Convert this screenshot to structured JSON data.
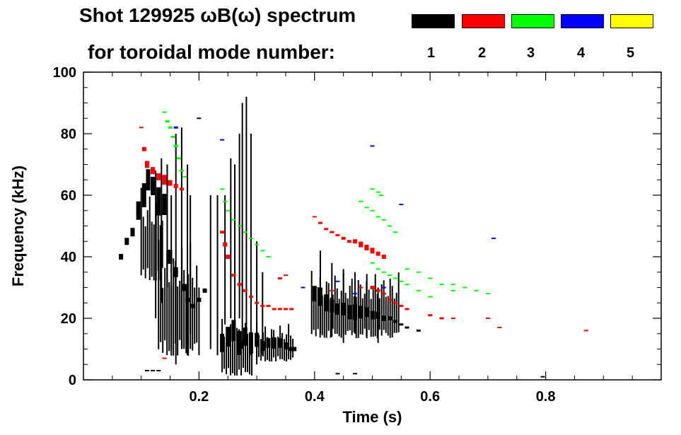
{
  "chart_data": {
    "type": "heatmap",
    "title_line1": "Shot 129925 ωB(ω) spectrum",
    "title_line2": "for toroidal mode number:",
    "xlabel": "Time (s)",
    "ylabel": "Frequency (kHz)",
    "xlim": [
      0.0,
      1.0
    ],
    "ylim": [
      0,
      100
    ],
    "xticks": [
      0.2,
      0.4,
      0.6,
      0.8
    ],
    "xtick_labels": [
      "0.2",
      "0.4",
      "0.6",
      "0.8"
    ],
    "yticks": [
      0,
      20,
      40,
      60,
      80,
      100
    ],
    "ytick_labels": [
      "0",
      "20",
      "40",
      "60",
      "80",
      "100"
    ],
    "legend": [
      {
        "n": "1",
        "color": "#000000"
      },
      {
        "n": "2",
        "color": "#ff0000"
      },
      {
        "n": "3",
        "color": "#00ff00"
      },
      {
        "n": "4",
        "color": "#0000ff"
      },
      {
        "n": "5",
        "color": "#ffff00"
      }
    ],
    "series": [
      {
        "name": "n=1",
        "color": "#000000",
        "strokes": [
          [
            0.065,
            40
          ],
          [
            0.075,
            45
          ],
          [
            0.085,
            48
          ],
          [
            0.095,
            55
          ],
          [
            0.105,
            60
          ],
          [
            0.112,
            65
          ],
          [
            0.12,
            63
          ],
          [
            0.13,
            58
          ],
          [
            0.14,
            57
          ],
          [
            0.15,
            40
          ],
          [
            0.16,
            35
          ],
          [
            0.175,
            30
          ],
          [
            0.18,
            26
          ],
          [
            0.19,
            24
          ],
          [
            0.2,
            26
          ],
          [
            0.21,
            29
          ],
          [
            0.24,
            12
          ],
          [
            0.25,
            14
          ],
          [
            0.26,
            16
          ],
          [
            0.27,
            12
          ],
          [
            0.28,
            14
          ],
          [
            0.29,
            12
          ],
          [
            0.3,
            13
          ],
          [
            0.31,
            11
          ],
          [
            0.32,
            12
          ],
          [
            0.33,
            12
          ],
          [
            0.34,
            12
          ],
          [
            0.35,
            11
          ],
          [
            0.36,
            10
          ],
          [
            0.365,
            10
          ],
          [
            0.4,
            28
          ],
          [
            0.41,
            27
          ],
          [
            0.42,
            25
          ],
          [
            0.43,
            24
          ],
          [
            0.44,
            23
          ],
          [
            0.45,
            23
          ],
          [
            0.46,
            22
          ],
          [
            0.47,
            22
          ],
          [
            0.48,
            22
          ],
          [
            0.49,
            22
          ],
          [
            0.5,
            21
          ],
          [
            0.51,
            21
          ],
          [
            0.52,
            20
          ],
          [
            0.53,
            20
          ],
          [
            0.54,
            19
          ],
          [
            0.55,
            18
          ],
          [
            0.56,
            17
          ],
          [
            0.58,
            16
          ],
          [
            0.2,
            85
          ],
          [
            0.11,
            3
          ],
          [
            0.12,
            3
          ],
          [
            0.13,
            3
          ],
          [
            0.44,
            2
          ],
          [
            0.47,
            2
          ],
          [
            0.795,
            1
          ]
        ],
        "widths": [
          8,
          10,
          12,
          26,
          34,
          30,
          26,
          40,
          30,
          20,
          14,
          10,
          6,
          6,
          6,
          6,
          26,
          28,
          30,
          34,
          26,
          30,
          20,
          14,
          14,
          16,
          14,
          10,
          6,
          6,
          22,
          26,
          24,
          18,
          16,
          18,
          20,
          22,
          18,
          14,
          12,
          10,
          8,
          6,
          4,
          3,
          3,
          3,
          2,
          2,
          2,
          2,
          2,
          2,
          2
        ],
        "fills": [
          [
            0.24,
            0.295,
            0,
            22
          ],
          [
            0.3,
            0.365,
            5,
            20
          ],
          [
            0.395,
            0.55,
            12,
            38
          ],
          [
            0.1,
            0.14,
            30,
            66
          ],
          [
            0.13,
            0.2,
            5,
            50
          ]
        ],
        "vlines": [
          [
            0.245,
            18,
            60
          ],
          [
            0.255,
            20,
            72
          ],
          [
            0.262,
            15,
            70
          ],
          [
            0.27,
            20,
            80
          ],
          [
            0.275,
            10,
            90
          ],
          [
            0.282,
            15,
            92
          ],
          [
            0.29,
            8,
            80
          ],
          [
            0.3,
            5,
            45
          ],
          [
            0.152,
            10,
            60
          ],
          [
            0.16,
            5,
            80
          ],
          [
            0.17,
            10,
            82
          ],
          [
            0.18,
            8,
            70
          ],
          [
            0.185,
            15,
            60
          ],
          [
            0.2,
            8,
            30
          ],
          [
            0.22,
            10,
            60
          ],
          [
            0.232,
            8,
            60
          ],
          [
            0.31,
            8,
            35
          ],
          [
            0.145,
            30,
            70
          ],
          [
            0.135,
            25,
            72
          ],
          [
            0.125,
            20,
            68
          ],
          [
            0.41,
            15,
            42
          ],
          [
            0.43,
            14,
            38
          ],
          [
            0.45,
            12,
            36
          ],
          [
            0.47,
            15,
            35
          ],
          [
            0.49,
            14,
            32
          ],
          [
            0.51,
            12,
            30
          ]
        ]
      },
      {
        "name": "n=2",
        "color": "#ff0000",
        "strokes": [
          [
            0.1,
            82
          ],
          [
            0.105,
            75
          ],
          [
            0.11,
            70
          ],
          [
            0.12,
            68
          ],
          [
            0.13,
            66
          ],
          [
            0.14,
            65
          ],
          [
            0.15,
            64
          ],
          [
            0.16,
            63
          ],
          [
            0.17,
            62
          ],
          [
            0.24,
            48
          ],
          [
            0.245,
            44
          ],
          [
            0.25,
            40
          ],
          [
            0.26,
            34
          ],
          [
            0.27,
            31
          ],
          [
            0.28,
            29
          ],
          [
            0.29,
            27
          ],
          [
            0.3,
            25
          ],
          [
            0.31,
            24
          ],
          [
            0.32,
            24
          ],
          [
            0.33,
            23
          ],
          [
            0.34,
            23
          ],
          [
            0.35,
            23
          ],
          [
            0.36,
            23
          ],
          [
            0.34,
            33
          ],
          [
            0.35,
            34
          ],
          [
            0.4,
            53
          ],
          [
            0.41,
            51
          ],
          [
            0.42,
            49
          ],
          [
            0.43,
            48
          ],
          [
            0.44,
            47
          ],
          [
            0.45,
            46
          ],
          [
            0.46,
            45
          ],
          [
            0.47,
            45
          ],
          [
            0.48,
            44
          ],
          [
            0.49,
            43
          ],
          [
            0.5,
            42
          ],
          [
            0.51,
            41
          ],
          [
            0.52,
            40
          ],
          [
            0.5,
            30
          ],
          [
            0.51,
            29
          ],
          [
            0.52,
            28
          ],
          [
            0.53,
            26
          ],
          [
            0.54,
            25
          ],
          [
            0.55,
            24
          ],
          [
            0.56,
            23
          ],
          [
            0.6,
            21
          ],
          [
            0.62,
            20
          ],
          [
            0.64,
            20
          ],
          [
            0.7,
            20
          ],
          [
            0.72,
            17
          ],
          [
            0.87,
            16
          ],
          [
            0.14,
            7
          ],
          [
            0.48,
            30
          ],
          [
            0.43,
            29
          ]
        ],
        "widths": [
          2,
          6,
          10,
          10,
          10,
          14,
          8,
          6,
          4,
          4,
          6,
          6,
          4,
          4,
          4,
          3,
          3,
          3,
          3,
          3,
          3,
          3,
          3,
          3,
          2,
          2,
          3,
          3,
          3,
          3,
          4,
          4,
          6,
          8,
          8,
          8,
          6,
          6,
          5,
          4,
          3,
          3,
          3,
          3,
          3,
          3,
          3,
          2,
          2,
          2,
          2,
          2,
          2,
          2,
          2
        ]
      },
      {
        "name": "n=3",
        "color": "#00ff00",
        "strokes": [
          [
            0.14,
            87
          ],
          [
            0.145,
            84
          ],
          [
            0.15,
            82
          ],
          [
            0.155,
            79
          ],
          [
            0.16,
            76
          ],
          [
            0.165,
            72
          ],
          [
            0.17,
            68
          ],
          [
            0.175,
            66
          ],
          [
            0.24,
            62
          ],
          [
            0.245,
            58
          ],
          [
            0.25,
            55
          ],
          [
            0.26,
            52
          ],
          [
            0.27,
            50
          ],
          [
            0.28,
            48
          ],
          [
            0.29,
            46
          ],
          [
            0.3,
            44
          ],
          [
            0.31,
            42
          ],
          [
            0.32,
            40
          ],
          [
            0.48,
            58
          ],
          [
            0.49,
            56
          ],
          [
            0.5,
            55
          ],
          [
            0.51,
            53
          ],
          [
            0.52,
            52
          ],
          [
            0.53,
            50
          ],
          [
            0.54,
            48
          ],
          [
            0.5,
            38
          ],
          [
            0.51,
            36
          ],
          [
            0.52,
            35
          ],
          [
            0.53,
            34
          ],
          [
            0.54,
            33
          ],
          [
            0.55,
            32
          ],
          [
            0.56,
            31
          ],
          [
            0.58,
            29
          ],
          [
            0.6,
            27
          ],
          [
            0.64,
            29
          ],
          [
            0.66,
            30
          ],
          [
            0.68,
            29
          ],
          [
            0.7,
            28
          ],
          [
            0.5,
            62
          ],
          [
            0.51,
            61
          ],
          [
            0.515,
            60
          ],
          [
            0.56,
            36
          ],
          [
            0.58,
            35
          ],
          [
            0.6,
            33
          ],
          [
            0.62,
            31
          ],
          [
            0.64,
            31
          ]
        ],
        "widths": [
          2,
          3,
          3,
          3,
          4,
          3,
          3,
          2,
          2,
          2,
          2,
          2,
          2,
          2,
          2,
          2,
          2,
          2,
          2,
          2,
          2,
          2,
          2,
          2,
          2,
          2,
          2,
          2,
          2,
          2,
          2,
          2,
          2,
          2,
          2,
          2,
          2,
          2,
          2,
          2,
          2,
          2,
          2,
          2,
          2,
          2
        ]
      },
      {
        "name": "n=4",
        "color": "#0000ff",
        "strokes": [
          [
            0.16,
            82
          ],
          [
            0.24,
            78
          ],
          [
            0.38,
            30
          ],
          [
            0.44,
            32
          ],
          [
            0.47,
            28
          ],
          [
            0.5,
            76
          ],
          [
            0.52,
            30
          ],
          [
            0.55,
            57
          ],
          [
            0.71,
            46
          ]
        ],
        "widths": [
          3,
          2,
          2,
          2,
          2,
          2,
          2,
          2,
          2
        ]
      },
      {
        "name": "n=5",
        "color": "#ffff00",
        "strokes": [],
        "widths": []
      }
    ]
  }
}
